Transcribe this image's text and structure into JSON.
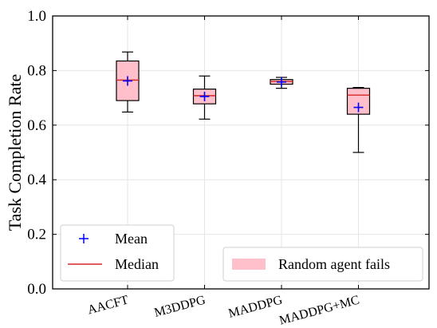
{
  "chart_data": {
    "type": "box",
    "ylabel": "Task Completion Rate",
    "ylim": [
      0.0,
      1.0
    ],
    "yticks": [
      "0.0",
      "0.2",
      "0.4",
      "0.6",
      "0.8",
      "1.0"
    ],
    "grid": true,
    "categories": [
      "AACFT",
      "M3DDPG",
      "MADDPG",
      "MADDPG+MC"
    ],
    "boxes": [
      {
        "name": "AACFT",
        "whisker_low": 0.648,
        "q1": 0.69,
        "median": 0.765,
        "q3": 0.835,
        "whisker_high": 0.868,
        "mean": 0.762
      },
      {
        "name": "M3DDPG",
        "whisker_low": 0.622,
        "q1": 0.678,
        "median": 0.708,
        "q3": 0.732,
        "whisker_high": 0.78,
        "mean": 0.705
      },
      {
        "name": "MADDPG",
        "whisker_low": 0.735,
        "q1": 0.75,
        "median": 0.76,
        "q3": 0.767,
        "whisker_high": 0.775,
        "mean": 0.758
      },
      {
        "name": "MADDPG+MC",
        "whisker_low": 0.5,
        "q1": 0.64,
        "median": 0.71,
        "q3": 0.735,
        "whisker_high": 0.738,
        "mean": 0.665
      }
    ],
    "legend": {
      "placement": "bottom-left",
      "entries": [
        {
          "label": "Mean",
          "color": "#0000ff",
          "marker": "plus"
        },
        {
          "label": "Median",
          "color": "#d62728",
          "marker": "line"
        }
      ]
    },
    "legend2": {
      "placement": "bottom-right",
      "entries": [
        {
          "label": "Random agent fails",
          "color": "#ffc0cb",
          "marker": "patch"
        }
      ]
    },
    "colors": {
      "box_fill": "#ffc0cb",
      "median": "#d62728",
      "mean": "#0000ff",
      "grid": "#e6e6e6"
    }
  }
}
